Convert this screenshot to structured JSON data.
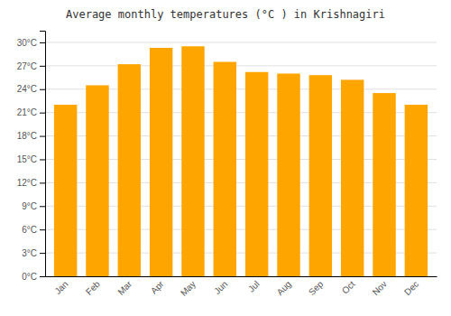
{
  "chart_data": {
    "type": "bar",
    "title": "Average monthly temperatures (°C ) in Krishnagiri",
    "categories": [
      "Jan",
      "Feb",
      "Mar",
      "Apr",
      "May",
      "Jun",
      "Jul",
      "Aug",
      "Sep",
      "Oct",
      "Nov",
      "Dec"
    ],
    "values": [
      22.0,
      24.5,
      27.2,
      29.3,
      29.5,
      27.5,
      26.2,
      26.0,
      25.8,
      25.2,
      23.5,
      22.0
    ],
    "color": "#FFA500",
    "ylim": [
      0,
      31.5
    ],
    "yticks": [
      {
        "value": 0,
        "label": "0°C"
      },
      {
        "value": 3,
        "label": "3°C"
      },
      {
        "value": 6,
        "label": "6°C"
      },
      {
        "value": 9,
        "label": "9°C"
      },
      {
        "value": 12,
        "label": "12°C"
      },
      {
        "value": 15,
        "label": "15°C"
      },
      {
        "value": 18,
        "label": "18°C"
      },
      {
        "value": 21,
        "label": "21°C"
      },
      {
        "value": 24,
        "label": "24°C"
      },
      {
        "value": 27,
        "label": "27°C"
      },
      {
        "value": 30,
        "label": "30°C"
      }
    ],
    "grid": true
  }
}
